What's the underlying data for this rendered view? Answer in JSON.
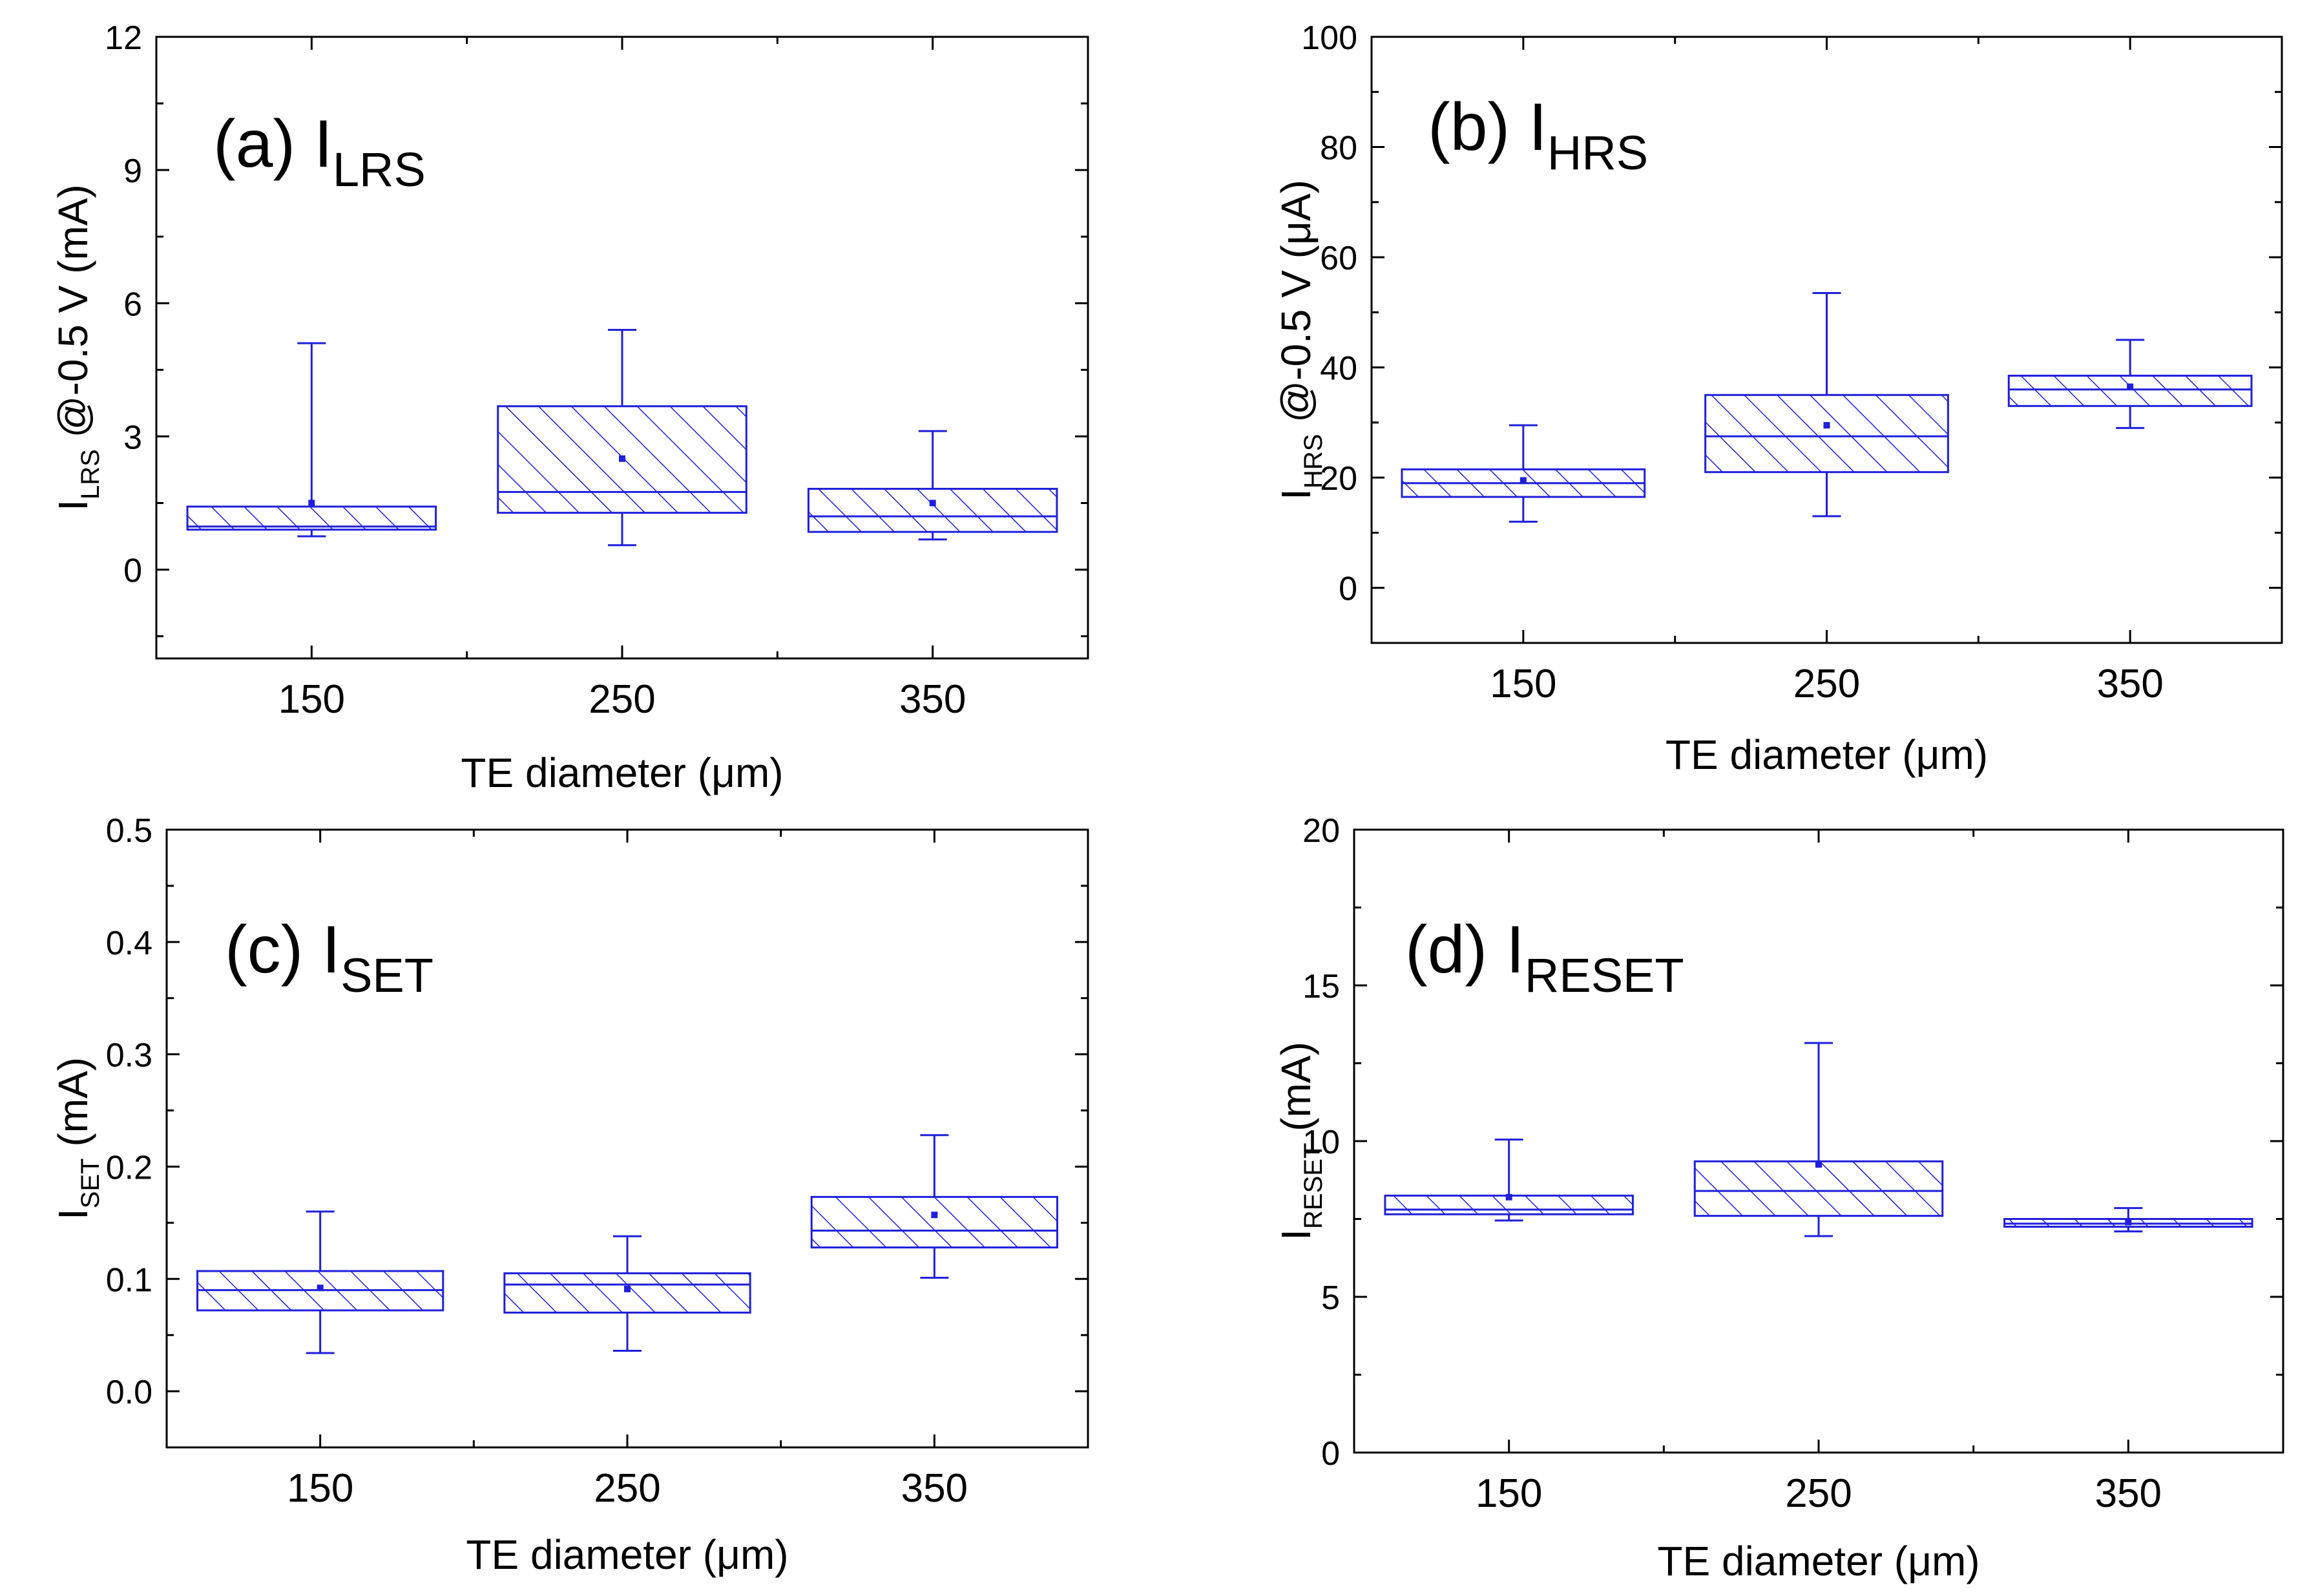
{
  "colors": {
    "box": "#1f1fdc",
    "axis": "#000000",
    "background": "#ffffff"
  },
  "chart_data": [
    {
      "id": "a",
      "type": "box",
      "panel_label": "(a) I",
      "panel_sub": "LRS",
      "ylabel_main": "I",
      "ylabel_sub": "LRS",
      "ylabel_rest": " @-0.5 V (mA)",
      "xlabel": "TE diameter (μm)",
      "categories": [
        "150",
        "250",
        "350"
      ],
      "yticks": [
        "0",
        "3",
        "6",
        "9",
        "12"
      ],
      "ytick_values": [
        0,
        3,
        6,
        9,
        12
      ],
      "ylim": [
        -2,
        12
      ],
      "boxes": [
        {
          "min": 0.75,
          "q1": 0.9,
          "median": 0.97,
          "q3": 1.42,
          "max": 5.1,
          "mean": 1.5
        },
        {
          "min": 0.55,
          "q1": 1.28,
          "median": 1.75,
          "q3": 3.68,
          "max": 5.4,
          "mean": 2.5
        },
        {
          "min": 0.68,
          "q1": 0.85,
          "median": 1.2,
          "q3": 1.82,
          "max": 3.12,
          "mean": 1.5
        }
      ]
    },
    {
      "id": "b",
      "type": "box",
      "panel_label": "(b) I",
      "panel_sub": "HRS",
      "ylabel_main": "I",
      "ylabel_sub": "HRS",
      "ylabel_rest": " @-0.5 V (μA)",
      "xlabel": "TE diameter (μm)",
      "categories": [
        "150",
        "250",
        "350"
      ],
      "yticks": [
        "0",
        "20",
        "40",
        "60",
        "80",
        "100"
      ],
      "ytick_values": [
        0,
        20,
        40,
        60,
        80,
        100
      ],
      "ylim": [
        -10,
        100
      ],
      "boxes": [
        {
          "min": 12,
          "q1": 16.5,
          "median": 19,
          "q3": 21.5,
          "max": 29.5,
          "mean": 19.5
        },
        {
          "min": 13,
          "q1": 21,
          "median": 27.5,
          "q3": 35,
          "max": 53.5,
          "mean": 29.5
        },
        {
          "min": 29,
          "q1": 33,
          "median": 36,
          "q3": 38.5,
          "max": 45,
          "mean": 36.5
        }
      ]
    },
    {
      "id": "c",
      "type": "box",
      "panel_label": "(c) I",
      "panel_sub": "SET",
      "ylabel_main": "I",
      "ylabel_sub": "SET",
      "ylabel_rest": " (mA)",
      "xlabel": "TE diameter (μm)",
      "categories": [
        "150",
        "250",
        "350"
      ],
      "yticks": [
        "0.0",
        "0.1",
        "0.2",
        "0.3",
        "0.4",
        "0.5"
      ],
      "ytick_values": [
        0.0,
        0.1,
        0.2,
        0.3,
        0.4,
        0.5
      ],
      "ylim": [
        -0.05,
        0.5
      ],
      "boxes": [
        {
          "min": 0.034,
          "q1": 0.072,
          "median": 0.09,
          "q3": 0.107,
          "max": 0.16,
          "mean": 0.092
        },
        {
          "min": 0.036,
          "q1": 0.07,
          "median": 0.095,
          "q3": 0.105,
          "max": 0.138,
          "mean": 0.091
        },
        {
          "min": 0.101,
          "q1": 0.128,
          "median": 0.143,
          "q3": 0.173,
          "max": 0.228,
          "mean": 0.157
        }
      ]
    },
    {
      "id": "d",
      "type": "box",
      "panel_label": "(d) I",
      "panel_sub": "RESET",
      "ylabel_main": "I",
      "ylabel_sub": "RESET",
      "ylabel_rest": " (mA)",
      "xlabel": "TE diameter (μm)",
      "categories": [
        "150",
        "250",
        "350"
      ],
      "yticks": [
        "0",
        "5",
        "10",
        "15",
        "20"
      ],
      "ytick_values": [
        0,
        5,
        10,
        15,
        20
      ],
      "ylim": [
        0,
        20
      ],
      "boxes": [
        {
          "min": 7.45,
          "q1": 7.65,
          "median": 7.8,
          "q3": 8.25,
          "max": 10.05,
          "mean": 8.2
        },
        {
          "min": 6.95,
          "q1": 7.6,
          "median": 8.4,
          "q3": 9.35,
          "max": 13.15,
          "mean": 9.25
        },
        {
          "min": 7.1,
          "q1": 7.25,
          "median": 7.35,
          "q3": 7.5,
          "max": 7.85,
          "mean": 7.4
        }
      ]
    }
  ]
}
